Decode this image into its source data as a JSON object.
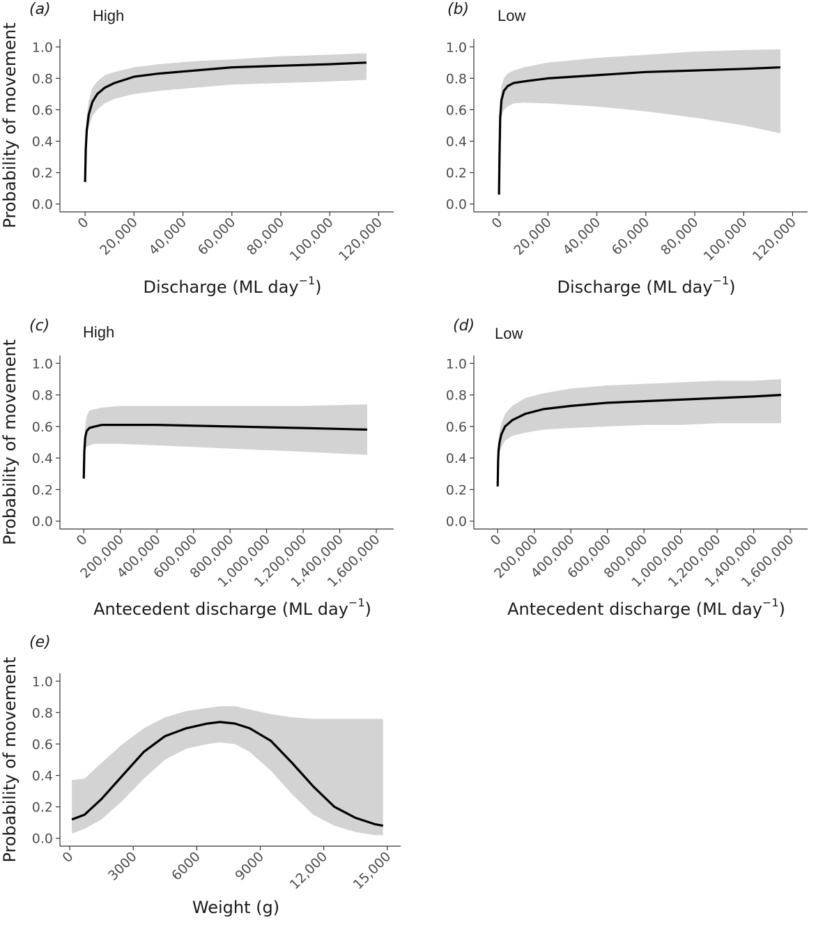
{
  "chart_data": [
    {
      "id": "a",
      "type": "line",
      "panel_label": "(a)",
      "subtitle": "High",
      "xlabel": "Discharge (ML day",
      "xlabel_sup": "−1",
      "xlabel_suffix": ")",
      "ylabel": "Probability of movement",
      "xlim": [
        -8000,
        125000
      ],
      "ylim": [
        -0.05,
        1.05
      ],
      "x_ticks": [
        0,
        20000,
        40000,
        60000,
        80000,
        100000,
        120000
      ],
      "x_tick_labels": [
        "0",
        "20,000",
        "40,000",
        "60,000",
        "80,000",
        "100,000",
        "120,000"
      ],
      "y_ticks": [
        0,
        0.2,
        0.4,
        0.6,
        0.8,
        1.0
      ],
      "y_tick_labels": [
        "0.0",
        "0.2",
        "0.4",
        "0.6",
        "0.8",
        "1.0"
      ],
      "series": [
        {
          "x": [
            0,
            300,
            700,
            1500,
            3000,
            5000,
            8000,
            12000,
            20000,
            30000,
            45000,
            60000,
            80000,
            100000,
            115000
          ],
          "y": [
            0.14,
            0.35,
            0.47,
            0.57,
            0.65,
            0.7,
            0.74,
            0.77,
            0.81,
            0.83,
            0.85,
            0.87,
            0.88,
            0.89,
            0.9
          ],
          "lower": [
            0.1,
            0.3,
            0.42,
            0.49,
            0.56,
            0.6,
            0.64,
            0.67,
            0.7,
            0.72,
            0.74,
            0.76,
            0.77,
            0.78,
            0.79
          ],
          "upper": [
            0.2,
            0.45,
            0.56,
            0.66,
            0.74,
            0.78,
            0.82,
            0.84,
            0.87,
            0.89,
            0.91,
            0.92,
            0.94,
            0.95,
            0.96
          ]
        }
      ]
    },
    {
      "id": "b",
      "type": "line",
      "panel_label": "(b)",
      "subtitle": "Low",
      "xlabel": "Discharge (ML day",
      "xlabel_sup": "−1",
      "xlabel_suffix": ")",
      "ylabel": "",
      "xlim": [
        -8000,
        125000
      ],
      "ylim": [
        -0.05,
        1.05
      ],
      "x_ticks": [
        0,
        20000,
        40000,
        60000,
        80000,
        100000,
        120000
      ],
      "x_tick_labels": [
        "0",
        "20,000",
        "40,000",
        "60,000",
        "80,000",
        "100,000",
        "120,000"
      ],
      "y_ticks": [
        0,
        0.2,
        0.4,
        0.6,
        0.8,
        1.0
      ],
      "y_tick_labels": [
        "0.0",
        "0.2",
        "0.4",
        "0.6",
        "0.8",
        "1.0"
      ],
      "series": [
        {
          "x": [
            0,
            200,
            500,
            1000,
            2000,
            3500,
            6000,
            10000,
            20000,
            40000,
            60000,
            80000,
            100000,
            115000
          ],
          "y": [
            0.06,
            0.3,
            0.55,
            0.66,
            0.72,
            0.75,
            0.77,
            0.78,
            0.8,
            0.82,
            0.84,
            0.85,
            0.86,
            0.87
          ],
          "lower": [
            0.03,
            0.24,
            0.45,
            0.55,
            0.6,
            0.62,
            0.64,
            0.645,
            0.64,
            0.62,
            0.59,
            0.55,
            0.5,
            0.45
          ],
          "upper": [
            0.1,
            0.4,
            0.65,
            0.75,
            0.8,
            0.83,
            0.85,
            0.87,
            0.9,
            0.93,
            0.95,
            0.97,
            0.98,
            0.985
          ]
        }
      ]
    },
    {
      "id": "c",
      "type": "line",
      "panel_label": "(c)",
      "subtitle": "High",
      "xlabel": "Antecedent discharge (ML day",
      "xlabel_sup": "−1",
      "xlabel_suffix": ")",
      "ylabel": "Probability of movement",
      "xlim": [
        -100000,
        1680000
      ],
      "ylim": [
        -0.05,
        1.05
      ],
      "x_ticks": [
        0,
        200000,
        400000,
        600000,
        800000,
        1000000,
        1200000,
        1400000,
        1600000
      ],
      "x_tick_labels": [
        "0",
        "200,000",
        "400,000",
        "600,000",
        "800,000",
        "1,000,000",
        "1,200,000",
        "1,400,000",
        "1,600,000"
      ],
      "y_ticks": [
        0,
        0.2,
        0.4,
        0.6,
        0.8,
        1.0
      ],
      "y_tick_labels": [
        "0.0",
        "0.2",
        "0.4",
        "0.6",
        "0.8",
        "1.0"
      ],
      "series": [
        {
          "x": [
            0,
            3000,
            8000,
            15000,
            30000,
            60000,
            100000,
            200000,
            400000,
            800000,
            1200000,
            1550000
          ],
          "y": [
            0.27,
            0.44,
            0.53,
            0.57,
            0.59,
            0.6,
            0.61,
            0.61,
            0.61,
            0.6,
            0.59,
            0.58
          ],
          "lower": [
            0.23,
            0.38,
            0.45,
            0.47,
            0.48,
            0.49,
            0.49,
            0.49,
            0.48,
            0.46,
            0.44,
            0.42
          ],
          "upper": [
            0.32,
            0.5,
            0.6,
            0.66,
            0.7,
            0.71,
            0.72,
            0.73,
            0.73,
            0.73,
            0.73,
            0.74
          ]
        }
      ]
    },
    {
      "id": "d",
      "type": "line",
      "panel_label": "(d)",
      "subtitle": "Low",
      "xlabel": "Antecedent discharge (ML day",
      "xlabel_sup": "−1",
      "xlabel_suffix": ")",
      "ylabel": "",
      "xlim": [
        -100000,
        1680000
      ],
      "ylim": [
        -0.05,
        1.05
      ],
      "x_ticks": [
        0,
        200000,
        400000,
        600000,
        800000,
        1000000,
        1200000,
        1400000,
        1600000
      ],
      "x_tick_labels": [
        "0",
        "200,000",
        "400,000",
        "600,000",
        "800,000",
        "1,000,000",
        "1,200,000",
        "1,400,000",
        "1,600,000"
      ],
      "y_ticks": [
        0,
        0.2,
        0.4,
        0.6,
        0.8,
        1.0
      ],
      "y_tick_labels": [
        "0.0",
        "0.2",
        "0.4",
        "0.6",
        "0.8",
        "1.0"
      ],
      "series": [
        {
          "x": [
            0,
            2000,
            5000,
            10000,
            20000,
            40000,
            80000,
            150000,
            250000,
            400000,
            600000,
            800000,
            1000000,
            1200000,
            1400000,
            1550000
          ],
          "y": [
            0.22,
            0.38,
            0.45,
            0.5,
            0.55,
            0.6,
            0.64,
            0.68,
            0.71,
            0.73,
            0.75,
            0.76,
            0.77,
            0.78,
            0.79,
            0.8
          ],
          "lower": [
            0.18,
            0.33,
            0.39,
            0.43,
            0.47,
            0.51,
            0.54,
            0.56,
            0.58,
            0.59,
            0.6,
            0.61,
            0.61,
            0.62,
            0.62,
            0.62
          ],
          "upper": [
            0.28,
            0.44,
            0.52,
            0.57,
            0.62,
            0.68,
            0.73,
            0.78,
            0.81,
            0.84,
            0.86,
            0.87,
            0.88,
            0.89,
            0.89,
            0.9
          ]
        }
      ]
    },
    {
      "id": "e",
      "type": "line",
      "panel_label": "(e)",
      "subtitle": "",
      "xlabel": "Weight (g)",
      "xlabel_sup": "",
      "xlabel_suffix": "",
      "ylabel": "Probability of movement",
      "xlim": [
        -200,
        15500
      ],
      "ylim": [
        -0.05,
        1.05
      ],
      "x_ticks": [
        0,
        3000,
        6000,
        9000,
        12000,
        15000
      ],
      "x_tick_labels": [
        "0",
        "3000",
        "6000",
        "9000",
        "12,000",
        "15,000"
      ],
      "y_ticks": [
        0,
        0.2,
        0.4,
        0.6,
        0.8,
        1.0
      ],
      "y_tick_labels": [
        "0.0",
        "0.2",
        "0.4",
        "0.6",
        "0.8",
        "1.0"
      ],
      "series": [
        {
          "x": [
            100,
            700,
            1500,
            2500,
            3500,
            4500,
            5500,
            6500,
            7100,
            7800,
            8500,
            9500,
            10500,
            11500,
            12500,
            13500,
            14400,
            14800
          ],
          "y": [
            0.12,
            0.15,
            0.25,
            0.4,
            0.55,
            0.65,
            0.7,
            0.73,
            0.74,
            0.73,
            0.7,
            0.62,
            0.48,
            0.33,
            0.2,
            0.13,
            0.09,
            0.08
          ],
          "lower": [
            0.03,
            0.06,
            0.12,
            0.24,
            0.38,
            0.5,
            0.57,
            0.6,
            0.61,
            0.6,
            0.55,
            0.43,
            0.28,
            0.15,
            0.08,
            0.04,
            0.02,
            0.02
          ],
          "upper": [
            0.37,
            0.38,
            0.48,
            0.6,
            0.7,
            0.77,
            0.81,
            0.83,
            0.84,
            0.84,
            0.82,
            0.79,
            0.77,
            0.76,
            0.76,
            0.76,
            0.76,
            0.76
          ]
        }
      ]
    }
  ]
}
